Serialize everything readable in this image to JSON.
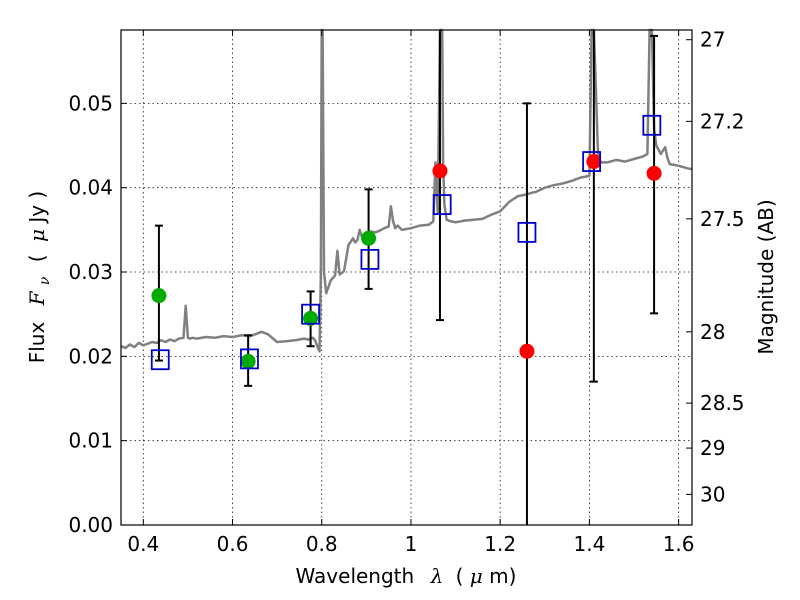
{
  "chart_data": {
    "type": "scatter",
    "title": "",
    "xlabel_prefix": "Wavelength",
    "xlabel_symbol": "λ",
    "xlabel_unit_open": "(",
    "xlabel_unit_mu": "μ",
    "xlabel_unit_close": "m)",
    "ylabel_prefix": "Flux",
    "ylabel_symbol": "F",
    "ylabel_subscript": "ν",
    "ylabel_unit_open": "(",
    "ylabel_unit_mu": "μ",
    "ylabel_unit_close": "Jy )",
    "y2label": "Magnitude (AB)",
    "xlim": [
      0.35,
      1.63
    ],
    "ylim": [
      0.0,
      0.0587
    ],
    "xticks": [
      0.4,
      0.6,
      0.8,
      1.0,
      1.2,
      1.4,
      1.6
    ],
    "xtick_labels": [
      "0.4",
      "0.6",
      "0.8",
      "1",
      "1.2",
      "1.4",
      "1.6"
    ],
    "yticks": [
      0.0,
      0.01,
      0.02,
      0.03,
      0.04,
      0.05
    ],
    "ytick_labels": [
      "0.00",
      "0.01",
      "0.02",
      "0.03",
      "0.04",
      "0.05"
    ],
    "y2ticks": [
      27.0,
      27.2,
      27.5,
      28.0,
      28.5,
      29.0,
      30.0
    ],
    "y2tick_labels": [
      "27",
      "27.2",
      "27.5",
      "28",
      "28.5",
      "29",
      "30"
    ],
    "grid": true,
    "colors": {
      "model": "#808080",
      "green": "#00aa00",
      "red": "#ff0000",
      "box": "#0000cc",
      "errorbar": "#000000"
    },
    "series": [
      {
        "kind": "model-spectrum",
        "x": [
          0.35,
          0.36,
          0.37,
          0.38,
          0.39,
          0.4,
          0.41,
          0.42,
          0.43,
          0.44,
          0.45,
          0.46,
          0.47,
          0.48,
          0.49,
          0.495,
          0.5,
          0.505,
          0.51,
          0.52,
          0.54,
          0.56,
          0.58,
          0.6,
          0.62,
          0.64,
          0.65,
          0.655,
          0.66,
          0.665,
          0.67,
          0.68,
          0.7,
          0.72,
          0.74,
          0.76,
          0.77,
          0.78,
          0.785,
          0.79,
          0.795,
          0.798,
          0.8,
          0.802,
          0.805,
          0.81,
          0.815,
          0.82,
          0.83,
          0.835,
          0.84,
          0.85,
          0.86,
          0.87,
          0.875,
          0.88,
          0.885,
          0.89,
          0.9,
          0.91,
          0.92,
          0.93,
          0.94,
          0.95,
          0.955,
          0.96,
          0.965,
          0.97,
          0.98,
          1.0,
          1.02,
          1.04,
          1.05,
          1.055,
          1.06,
          1.065,
          1.068,
          1.07,
          1.072,
          1.075,
          1.08,
          1.09,
          1.1,
          1.12,
          1.14,
          1.16,
          1.18,
          1.2,
          1.22,
          1.24,
          1.26,
          1.27,
          1.28,
          1.3,
          1.32,
          1.34,
          1.36,
          1.38,
          1.4,
          1.405,
          1.41,
          1.42,
          1.44,
          1.46,
          1.48,
          1.5,
          1.52,
          1.53,
          1.535,
          1.54,
          1.545,
          1.55,
          1.56,
          1.57,
          1.575,
          1.58,
          1.59,
          1.6,
          1.62,
          1.63
        ],
        "y": [
          0.0212,
          0.021,
          0.0214,
          0.0211,
          0.0216,
          0.0213,
          0.0215,
          0.0217,
          0.0216,
          0.0219,
          0.0217,
          0.022,
          0.0218,
          0.0221,
          0.0222,
          0.026,
          0.0222,
          0.0221,
          0.0222,
          0.0221,
          0.0223,
          0.0222,
          0.0224,
          0.0223,
          0.0225,
          0.0224,
          0.0226,
          0.0227,
          0.0228,
          0.0229,
          0.0228,
          0.0226,
          0.0217,
          0.0218,
          0.0219,
          0.0221,
          0.022,
          0.0222,
          0.0219,
          0.0212,
          0.0206,
          0.03,
          0.0587,
          0.0587,
          0.03,
          0.0275,
          0.0282,
          0.029,
          0.0296,
          0.0325,
          0.0297,
          0.0301,
          0.0332,
          0.034,
          0.0335,
          0.0338,
          0.035,
          0.0342,
          0.0345,
          0.0348,
          0.0347,
          0.0349,
          0.0352,
          0.0354,
          0.0378,
          0.036,
          0.0352,
          0.0355,
          0.035,
          0.0352,
          0.0355,
          0.0356,
          0.036,
          0.043,
          0.037,
          0.0587,
          0.0587,
          0.0587,
          0.043,
          0.038,
          0.0362,
          0.036,
          0.0359,
          0.0361,
          0.0362,
          0.0363,
          0.0368,
          0.0372,
          0.0383,
          0.039,
          0.0392,
          0.0394,
          0.0395,
          0.04,
          0.0403,
          0.0405,
          0.0408,
          0.0412,
          0.0414,
          0.0587,
          0.0587,
          0.043,
          0.043,
          0.0433,
          0.0431,
          0.0434,
          0.0437,
          0.044,
          0.0587,
          0.0587,
          0.047,
          0.045,
          0.044,
          0.0448,
          0.0435,
          0.0428,
          0.0427,
          0.0426,
          0.0423,
          0.0422
        ]
      },
      {
        "kind": "observed-green",
        "x": [
          0.435,
          0.635,
          0.775,
          0.905
        ],
        "y": [
          0.0272,
          0.0194,
          0.0245,
          0.034
        ],
        "err_low": [
          0.0077,
          0.0029,
          0.0033,
          0.006
        ],
        "err_high": [
          0.0083,
          0.0031,
          0.0032,
          0.0058
        ]
      },
      {
        "kind": "observed-red",
        "x": [
          1.065,
          1.26,
          1.41,
          1.545
        ],
        "y": [
          0.042,
          0.0206,
          0.0431,
          0.0417
        ],
        "err_low": [
          0.0177,
          0.0206,
          0.0261,
          0.0166
        ],
        "err_high": [
          0.0167,
          0.0294,
          0.0156,
          0.0163
        ]
      },
      {
        "kind": "model-box",
        "x": [
          0.438,
          0.638,
          0.775,
          0.908,
          1.07,
          1.26,
          1.405,
          1.54
        ],
        "y": [
          0.0196,
          0.0197,
          0.025,
          0.0315,
          0.038,
          0.0347,
          0.0431,
          0.0474
        ]
      }
    ]
  }
}
